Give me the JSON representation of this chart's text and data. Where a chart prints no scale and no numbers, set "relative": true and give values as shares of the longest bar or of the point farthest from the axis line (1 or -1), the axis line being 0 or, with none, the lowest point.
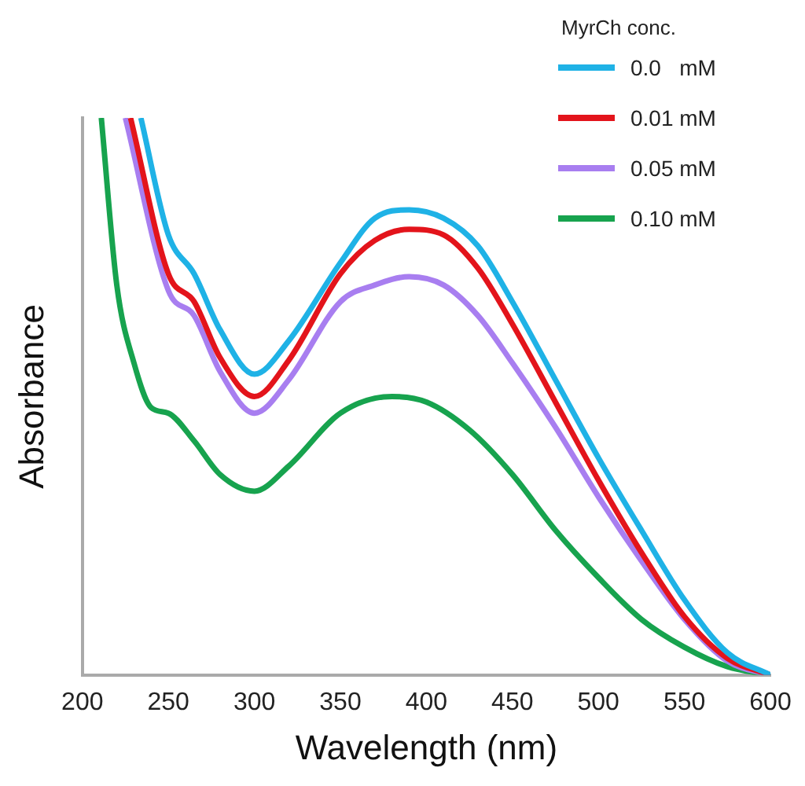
{
  "chart_data": {
    "type": "line",
    "relative": true,
    "xlabel": "Wavelength (nm)",
    "ylabel": "Absorbance",
    "legend_title": "MyrCh conc.",
    "legend": "top right",
    "grid": false,
    "marker": "none",
    "line_style": "solid",
    "xlim": [
      200,
      600
    ],
    "xticks": [
      200,
      250,
      300,
      350,
      400,
      450,
      500,
      550,
      600
    ],
    "series": [
      {
        "name": "0.0   mM",
        "color": "#1fb2e6",
        "x": [
          234,
          250,
          265,
          280,
          300,
          320,
          350,
          370,
          390,
          410,
          430,
          450,
          475,
          500,
          525,
          550,
          575,
          600
        ],
        "values": [
          1,
          0.79,
          0.72,
          0.62,
          0.54,
          0.6,
          0.74,
          0.82,
          0.835,
          0.82,
          0.77,
          0.67,
          0.53,
          0.39,
          0.26,
          0.135,
          0.04,
          0
        ]
      },
      {
        "name": "0.01 mM",
        "color": "#e3141b",
        "x": [
          228,
          250,
          265,
          280,
          300,
          320,
          350,
          370,
          390,
          410,
          430,
          450,
          475,
          500,
          525,
          550,
          575,
          600
        ],
        "values": [
          1,
          0.72,
          0.67,
          0.57,
          0.5,
          0.565,
          0.72,
          0.78,
          0.8,
          0.79,
          0.73,
          0.63,
          0.49,
          0.35,
          0.22,
          0.105,
          0.03,
          0
        ]
      },
      {
        "name": "0.05 mM",
        "color": "#a87ef0",
        "x": [
          225,
          250,
          265,
          280,
          300,
          320,
          350,
          370,
          390,
          410,
          430,
          450,
          475,
          500,
          525,
          550,
          575,
          600
        ],
        "values": [
          1,
          0.69,
          0.645,
          0.545,
          0.47,
          0.53,
          0.67,
          0.7,
          0.715,
          0.7,
          0.645,
          0.56,
          0.445,
          0.32,
          0.205,
          0.1,
          0.025,
          0
        ]
      },
      {
        "name": "0.10 mM",
        "color": "#17a34e",
        "x": [
          211,
          220,
          230,
          240,
          250,
          265,
          280,
          300,
          320,
          350,
          380,
          400,
          425,
          450,
          475,
          500,
          525,
          550,
          575,
          600
        ],
        "values": [
          1,
          0.7,
          0.56,
          0.48,
          0.47,
          0.42,
          0.36,
          0.33,
          0.375,
          0.47,
          0.5,
          0.49,
          0.44,
          0.36,
          0.26,
          0.175,
          0.1,
          0.05,
          0.015,
          0
        ]
      }
    ]
  }
}
